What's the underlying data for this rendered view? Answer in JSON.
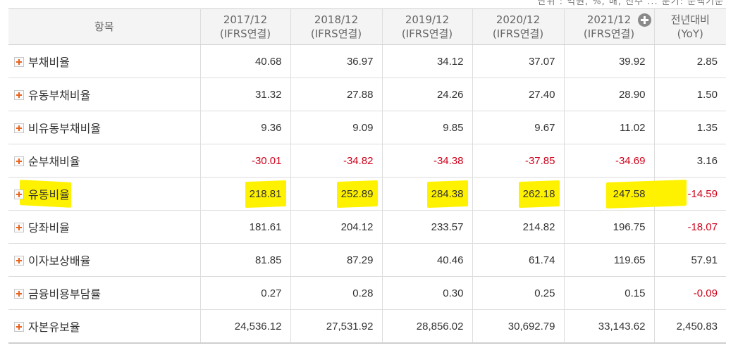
{
  "table": {
    "header": {
      "item": "항목",
      "columns": [
        {
          "period": "2017/12",
          "basis": "(IFRS연결)"
        },
        {
          "period": "2018/12",
          "basis": "(IFRS연결)"
        },
        {
          "period": "2019/12",
          "basis": "(IFRS연결)"
        },
        {
          "period": "2020/12",
          "basis": "(IFRS연결)"
        },
        {
          "period": "2021/12",
          "basis": "(IFRS연결)"
        },
        {
          "period": "전년대비",
          "basis": "(YoY)"
        }
      ]
    },
    "rows": [
      {
        "label": "부채비율",
        "values": [
          "40.68",
          "36.97",
          "34.12",
          "37.07",
          "39.92",
          "2.85"
        ]
      },
      {
        "label": "유동부채비율",
        "values": [
          "31.32",
          "27.88",
          "24.26",
          "27.40",
          "28.90",
          "1.50"
        ]
      },
      {
        "label": "비유동부채비율",
        "values": [
          "9.36",
          "9.09",
          "9.85",
          "9.67",
          "11.02",
          "1.35"
        ]
      },
      {
        "label": "순부채비율",
        "values": [
          "-30.01",
          "-34.82",
          "-34.38",
          "-37.85",
          "-34.69",
          "3.16"
        ]
      },
      {
        "label": "유동비율",
        "values": [
          "218.81",
          "252.89",
          "284.38",
          "262.18",
          "247.58",
          "-14.59"
        ]
      },
      {
        "label": "당좌비율",
        "values": [
          "181.61",
          "204.12",
          "233.57",
          "214.82",
          "196.75",
          "-18.07"
        ]
      },
      {
        "label": "이자보상배율",
        "values": [
          "81.85",
          "87.29",
          "40.46",
          "61.74",
          "119.65",
          "57.91"
        ]
      },
      {
        "label": "금융비용부담률",
        "values": [
          "0.27",
          "0.28",
          "0.30",
          "0.25",
          "0.15",
          "-0.09"
        ]
      },
      {
        "label": "자본유보율",
        "values": [
          "24,536.12",
          "27,531.92",
          "28,856.02",
          "30,692.79",
          "33,143.62",
          "2,450.83"
        ]
      }
    ]
  },
  "colors": {
    "negative": "#d0021b",
    "highlight": "#fff200",
    "expand_icon": "#e9631d",
    "header_bg": "#f4f4f4"
  },
  "icons": {
    "row_expand": "plus-box-icon",
    "add_column": "plus-circle-icon"
  }
}
